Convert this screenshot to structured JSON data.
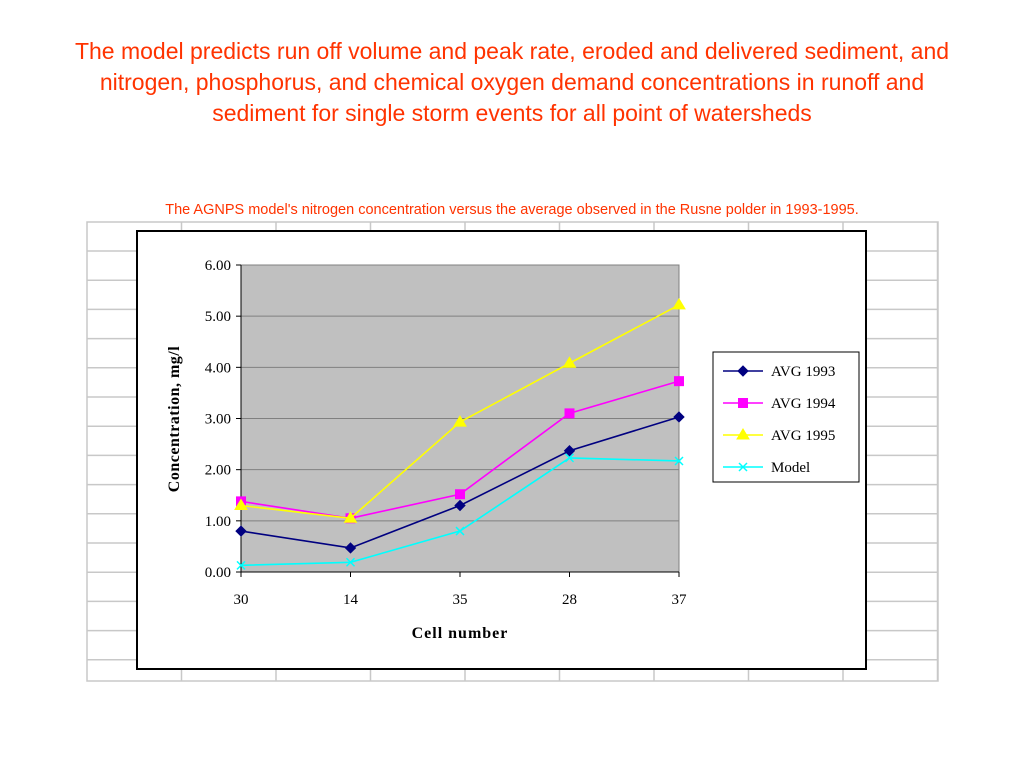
{
  "slide": {
    "title": "The model predicts run off volume and peak rate, eroded and delivered sediment, and nitrogen, phosphorus, and chemical oxygen demand concentrations in runoff and sediment for single storm events for all point of watersheds",
    "caption": "The AGNPS model's nitrogen concentration versus the average observed in the Rusne polder in 1993-1995."
  },
  "colors": {
    "title_text": "#ff3300",
    "plot_area": "#c0c0c0",
    "gridline": "#808080",
    "sheet_grid": "#c8c8c8"
  },
  "chart_data": {
    "type": "line",
    "categories": [
      "30",
      "14",
      "35",
      "28",
      "37"
    ],
    "ylabel": "Concentration, mg/l",
    "xlabel": "Cell number",
    "ylim": [
      0,
      6
    ],
    "y_ticks": [
      "0.00",
      "1.00",
      "2.00",
      "3.00",
      "4.00",
      "5.00",
      "6.00"
    ],
    "grid": true,
    "legend_position": "right",
    "series": [
      {
        "name": "AVG 1993",
        "values": [
          0.8,
          0.47,
          1.3,
          2.37,
          3.03
        ],
        "color": "#000080",
        "marker": "diamond"
      },
      {
        "name": "AVG 1994",
        "values": [
          1.38,
          1.05,
          1.52,
          3.1,
          3.73
        ],
        "color": "#ff00ff",
        "marker": "square"
      },
      {
        "name": "AVG 1995",
        "values": [
          1.3,
          1.05,
          2.93,
          4.08,
          5.22
        ],
        "color": "#ffff00",
        "marker": "triangle"
      },
      {
        "name": "Model",
        "values": [
          0.13,
          0.19,
          0.8,
          2.23,
          2.17
        ],
        "color": "#00ffff",
        "marker": "x"
      }
    ]
  }
}
